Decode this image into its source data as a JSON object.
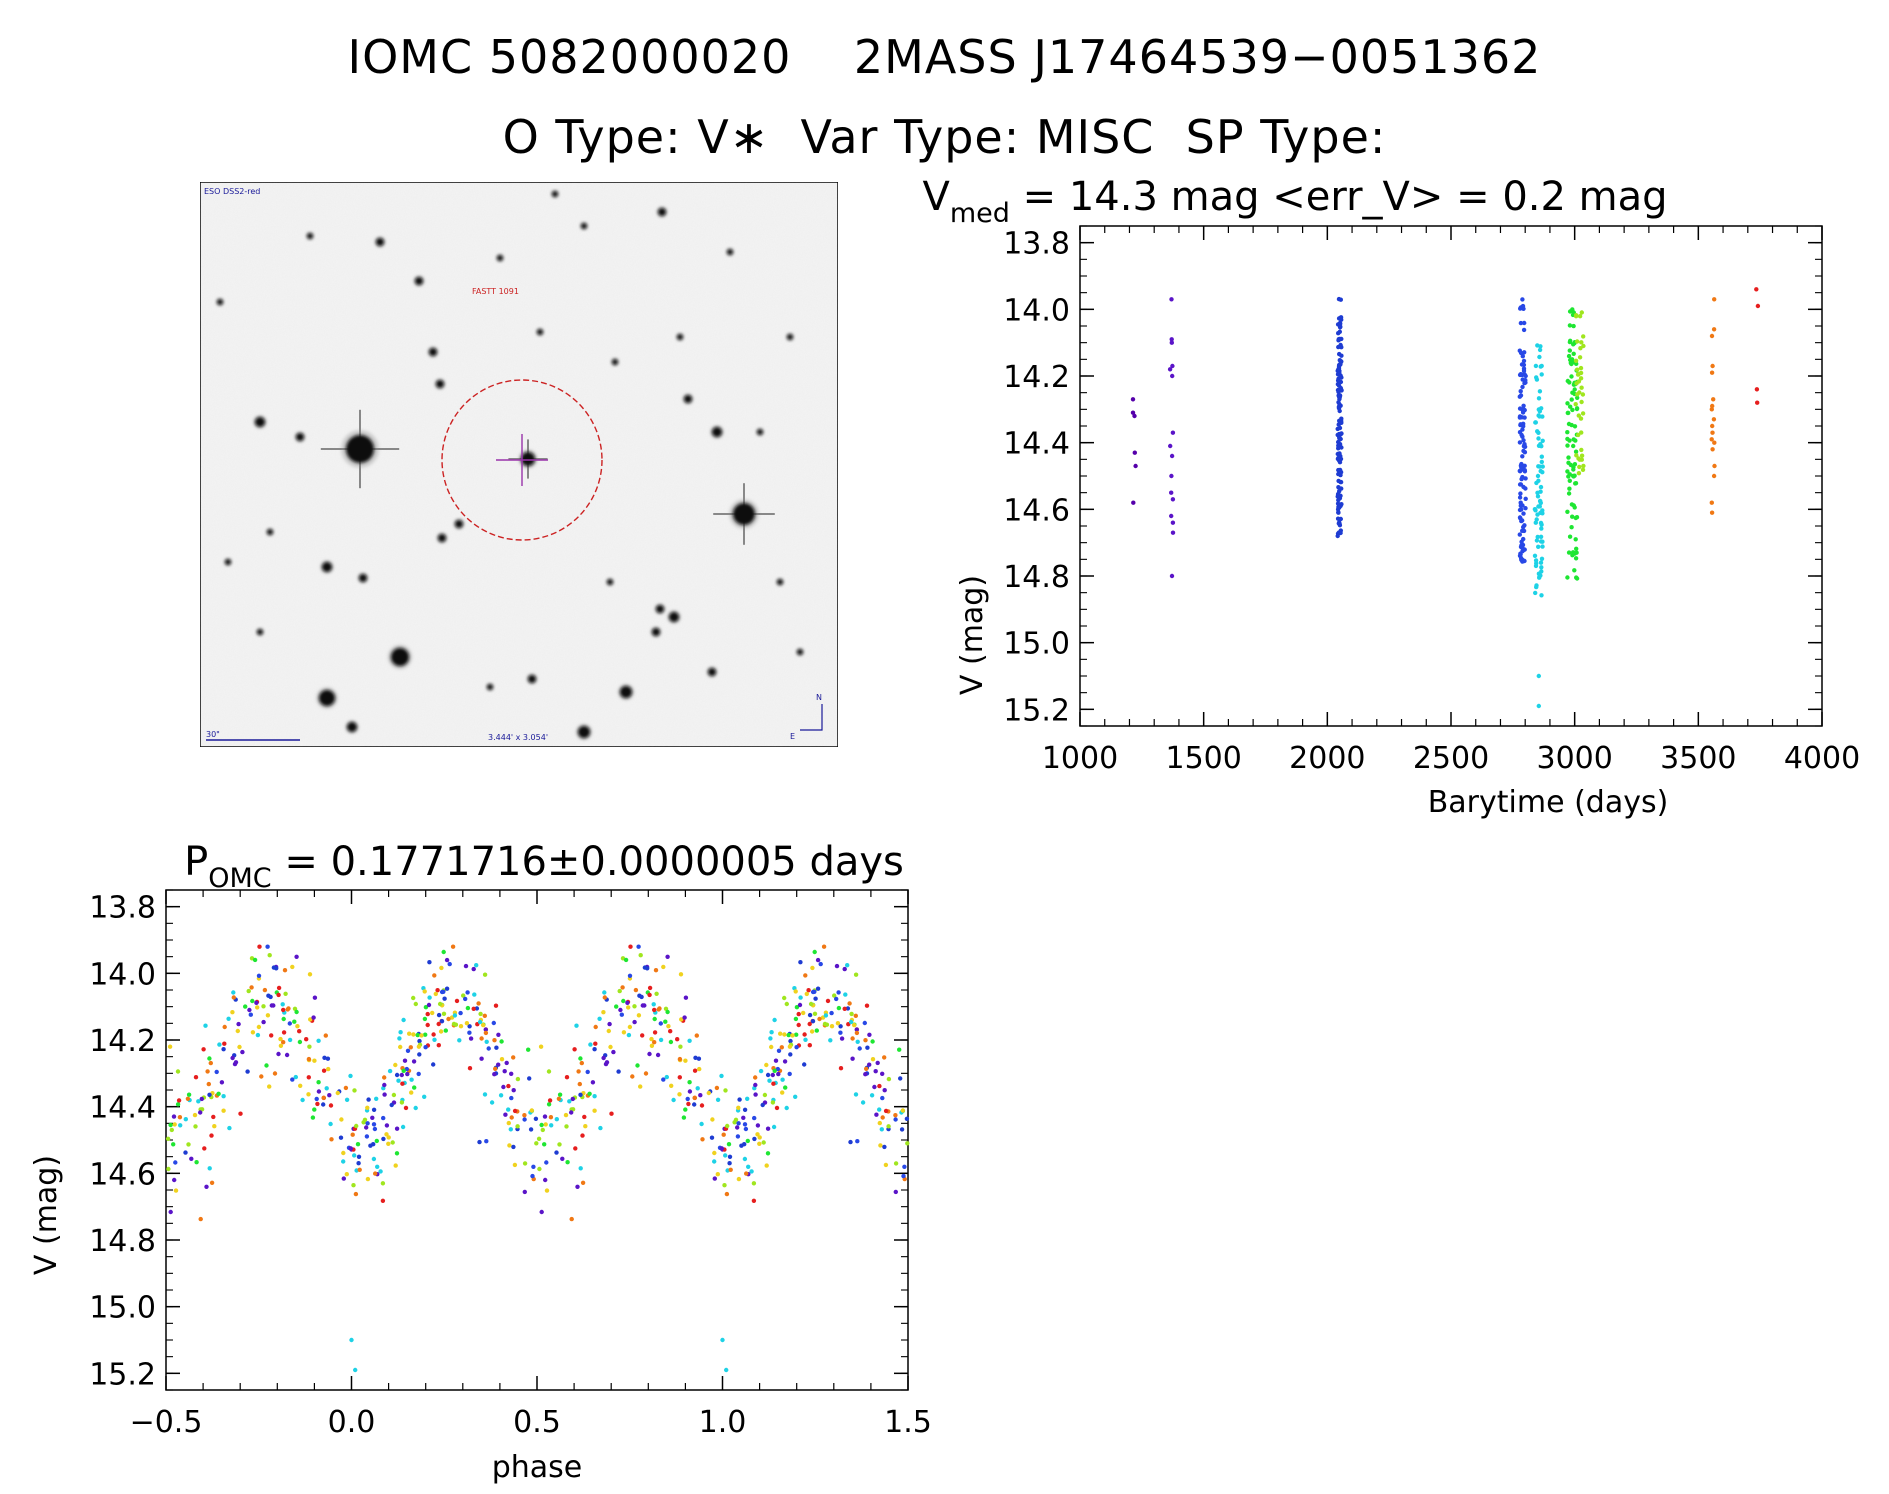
{
  "header": {
    "line1": "IOMC 5082000020    2MASS J17464539−0051362",
    "line2": "O Type: V∗  Var Type: MISC  SP Type:"
  },
  "finder_chart": {
    "survey_label": "ESO DSS2-red",
    "target_label": "FASTT 1091",
    "scale_label": "30\"",
    "size_label": "3.444' x 3.054'",
    "north_label": "N",
    "east_label": "E",
    "colors": {
      "circle": "#cc2222",
      "crosshair": "#9933aa",
      "labels": "#1a1a99"
    }
  },
  "chart_data": [
    {
      "type": "scatter",
      "title_parts": {
        "v": "V",
        "sub": "med",
        "rest": " = 14.3 mag <err_V> = 0.2 mag"
      },
      "xlabel": "Barytime (days)",
      "ylabel": "V (mag)",
      "xlim": [
        1000,
        4000
      ],
      "ylim": [
        15.25,
        13.75
      ],
      "y_inverted": true,
      "xticks": [
        1000,
        1500,
        2000,
        2500,
        3000,
        3500,
        4000
      ],
      "yticks": [
        13.8,
        14.0,
        14.2,
        14.4,
        14.6,
        14.8,
        15.0,
        15.2
      ],
      "color_scale": "rainbow by time (purple → red)",
      "groups": [
        {
          "x": 1220,
          "color": "#5500aa",
          "y": [
            14.27,
            14.31,
            14.32,
            14.43,
            14.47,
            14.58
          ]
        },
        {
          "x": 1370,
          "color": "#5a14c8",
          "y": [
            13.97,
            14.09,
            14.1,
            14.17,
            14.18,
            14.2,
            14.37,
            14.41,
            14.44,
            14.5,
            14.55,
            14.57,
            14.62,
            14.64,
            14.67,
            14.8
          ]
        },
        {
          "x": 2050,
          "color": "#1e3cd2",
          "spread_from": 13.96,
          "spread_to": 14.68,
          "count": 140,
          "jitter": 4
        },
        {
          "x": 2790,
          "color": "#2848e6",
          "spread_from": 13.97,
          "spread_to": 14.76,
          "count": 110,
          "jitter": 6
        },
        {
          "x": 2855,
          "color": "#1ed2e6",
          "spread_from": 14.1,
          "spread_to": 14.87,
          "count": 80,
          "jitter": 8,
          "extra": [
            15.1,
            15.19
          ]
        },
        {
          "x": 2990,
          "color": "#1ee632",
          "spread_from": 14.0,
          "spread_to": 14.82,
          "count": 90,
          "jitter": 10
        },
        {
          "x": 3020,
          "color": "#a0e61e",
          "spread_from": 14.0,
          "spread_to": 14.5,
          "count": 40,
          "jitter": 8
        },
        {
          "x": 3560,
          "color": "#f07814",
          "y": [
            13.97,
            14.06,
            14.08,
            14.17,
            14.19,
            14.27,
            14.29,
            14.3,
            14.33,
            14.35,
            14.37,
            14.39,
            14.4,
            14.42,
            14.47,
            14.5,
            14.58,
            14.61
          ]
        },
        {
          "x": 3740,
          "color": "#e61e1e",
          "y": [
            13.94,
            13.99,
            14.24,
            14.28
          ]
        }
      ]
    },
    {
      "type": "scatter",
      "title_parts": {
        "v": "P",
        "sub": "OMC",
        "rest": " = 0.1771716±0.0000005 days"
      },
      "xlabel": "phase",
      "ylabel": "V (mag)",
      "xlim": [
        -0.5,
        1.5
      ],
      "ylim": [
        15.25,
        13.75
      ],
      "y_inverted": true,
      "xticks": [
        -0.5,
        0.0,
        0.5,
        1.0,
        1.5
      ],
      "xtick_labels": [
        "−0.5",
        "0.0",
        "0.5",
        "1.0",
        "1.5"
      ],
      "yticks": [
        13.8,
        14.0,
        14.2,
        14.4,
        14.6,
        14.8,
        15.0,
        15.2
      ],
      "model": {
        "mean": 14.3,
        "amplitude": 0.22,
        "minimum_phase": 0.02,
        "scatter": 0.12,
        "points_per_cycle": 420
      },
      "colors": [
        "#1e3cd2",
        "#2848e6",
        "#1ed2e6",
        "#1ee632",
        "#a0e61e",
        "#f0d21e",
        "#f07814",
        "#e61e1e",
        "#5a14c8"
      ]
    }
  ]
}
